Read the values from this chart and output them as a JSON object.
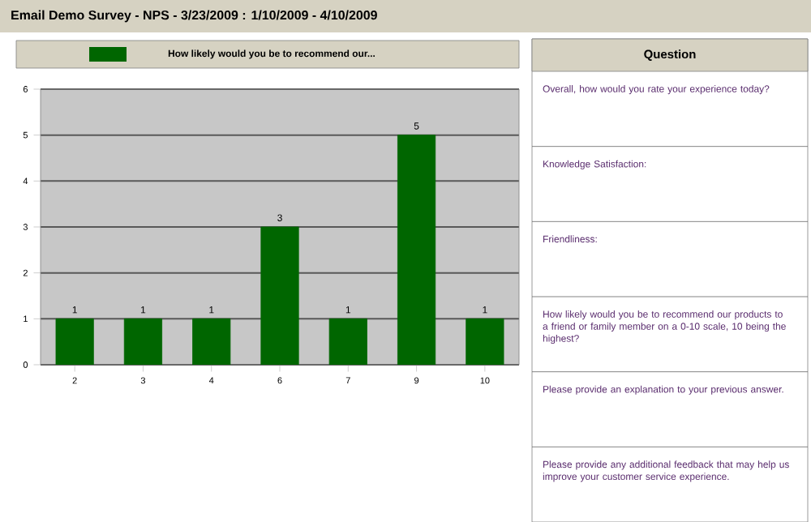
{
  "chart_data": [
    {
      "type": "bar",
      "title": "Email Demo Survey - NPS - 3/23/2009 : 1/10/2009 - 4/10/2009",
      "categories": [
        "2",
        "3",
        "4",
        "6",
        "7",
        "9",
        "10"
      ],
      "series": [
        {
          "name": "How likely would you be to recommend our...",
          "color": "#006600",
          "values": [
            1,
            1,
            1,
            3,
            1,
            5,
            1
          ]
        }
      ],
      "ylim": [
        0,
        6
      ],
      "yticks": [
        0,
        1,
        2,
        3,
        4,
        5,
        6
      ],
      "grid": "y",
      "legend": "top",
      "data_labels": true
    },
    {
      "type": "other",
      "title": "Question",
      "annotations": [
        "Overall, how would you rate your experience today?",
        "Knowledge Satisfaction:",
        "Friendliness:",
        "How likely would you be to recommend our products to a friend or family member on a 0-10 scale, 10 being the highest?",
        "Please provide an explanation to your previous answer.",
        "Please provide any additional feedback that may help us improve your customer service experience."
      ]
    }
  ]
}
